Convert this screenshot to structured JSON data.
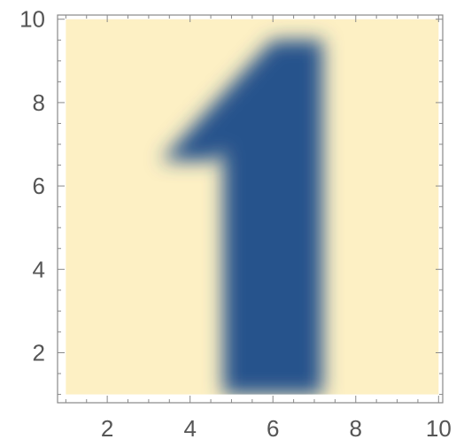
{
  "chart_data": {
    "type": "heatmap",
    "title": "",
    "xlabel": "",
    "ylabel": "",
    "xlim": [
      0.8,
      10.1
    ],
    "ylim": [
      0.8,
      10.1
    ],
    "x_ticks": [
      2,
      4,
      6,
      8,
      10
    ],
    "y_ticks": [
      2,
      4,
      6,
      8,
      10
    ],
    "x_tick_labels": [
      "2",
      "4",
      "6",
      "8",
      "10"
    ],
    "y_tick_labels": [
      "2",
      "4",
      "6",
      "8",
      "10"
    ],
    "data_extent": {
      "x": [
        1,
        10
      ],
      "y": [
        1,
        10
      ]
    },
    "color_scale": {
      "low": "#fdf0c4",
      "high": "#26538c"
    },
    "shape": {
      "description": "digit glyph",
      "high_region_polygon": [
        [
          4.8,
          1.0
        ],
        [
          7.2,
          1.0
        ],
        [
          7.2,
          9.5
        ],
        [
          6.0,
          9.5
        ],
        [
          3.3,
          6.6
        ],
        [
          4.6,
          6.6
        ],
        [
          4.8,
          6.9
        ]
      ],
      "blur_width": 0.45
    },
    "grid": false,
    "legend": "none"
  }
}
